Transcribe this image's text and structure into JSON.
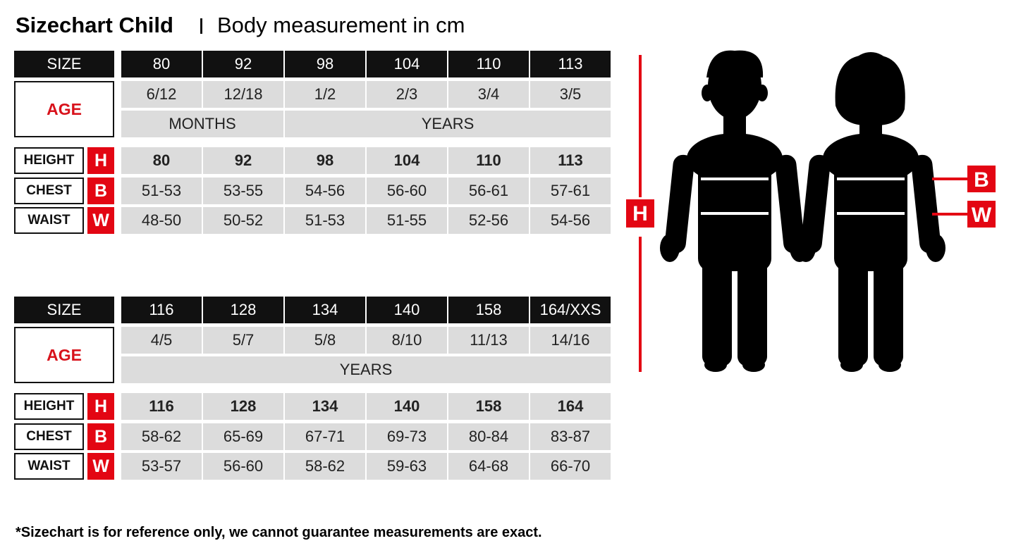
{
  "title": "Sizechart Child",
  "subtitle": "Body measurement in cm",
  "tables": [
    {
      "size_label": "SIZE",
      "sizes": [
        "80",
        "92",
        "98",
        "104",
        "110",
        "113"
      ],
      "age_label": "AGE",
      "ages": [
        "6/12",
        "12/18",
        "1/2",
        "2/3",
        "3/4",
        "3/5"
      ],
      "age_units": [
        "MONTHS",
        "YEARS"
      ],
      "rows": [
        {
          "label": "HEIGHT",
          "letter": "H",
          "values": [
            "80",
            "92",
            "98",
            "104",
            "110",
            "113"
          ]
        },
        {
          "label": "CHEST",
          "letter": "B",
          "values": [
            "51-53",
            "53-55",
            "54-56",
            "56-60",
            "56-61",
            "57-61"
          ]
        },
        {
          "label": "WAIST",
          "letter": "W",
          "values": [
            "48-50",
            "50-52",
            "51-53",
            "51-55",
            "52-56",
            "54-56"
          ]
        }
      ]
    },
    {
      "size_label": "SIZE",
      "sizes": [
        "116",
        "128",
        "134",
        "140",
        "158",
        "164/XXS"
      ],
      "age_label": "AGE",
      "ages": [
        "4/5",
        "5/7",
        "5/8",
        "8/10",
        "11/13",
        "14/16"
      ],
      "age_units": [
        "YEARS"
      ],
      "rows": [
        {
          "label": "HEIGHT",
          "letter": "H",
          "values": [
            "116",
            "128",
            "134",
            "140",
            "158",
            "164"
          ]
        },
        {
          "label": "CHEST",
          "letter": "B",
          "values": [
            "58-62",
            "65-69",
            "67-71",
            "69-73",
            "80-84",
            "83-87"
          ]
        },
        {
          "label": "WAIST",
          "letter": "W",
          "values": [
            "53-57",
            "56-60",
            "58-62",
            "59-63",
            "64-68",
            "66-70"
          ]
        }
      ]
    }
  ],
  "figure": {
    "height_letter": "H",
    "chest_letter": "B",
    "waist_letter": "W"
  },
  "footnote": "*Sizechart is for reference only, we cannot guarantee measurements are exact."
}
